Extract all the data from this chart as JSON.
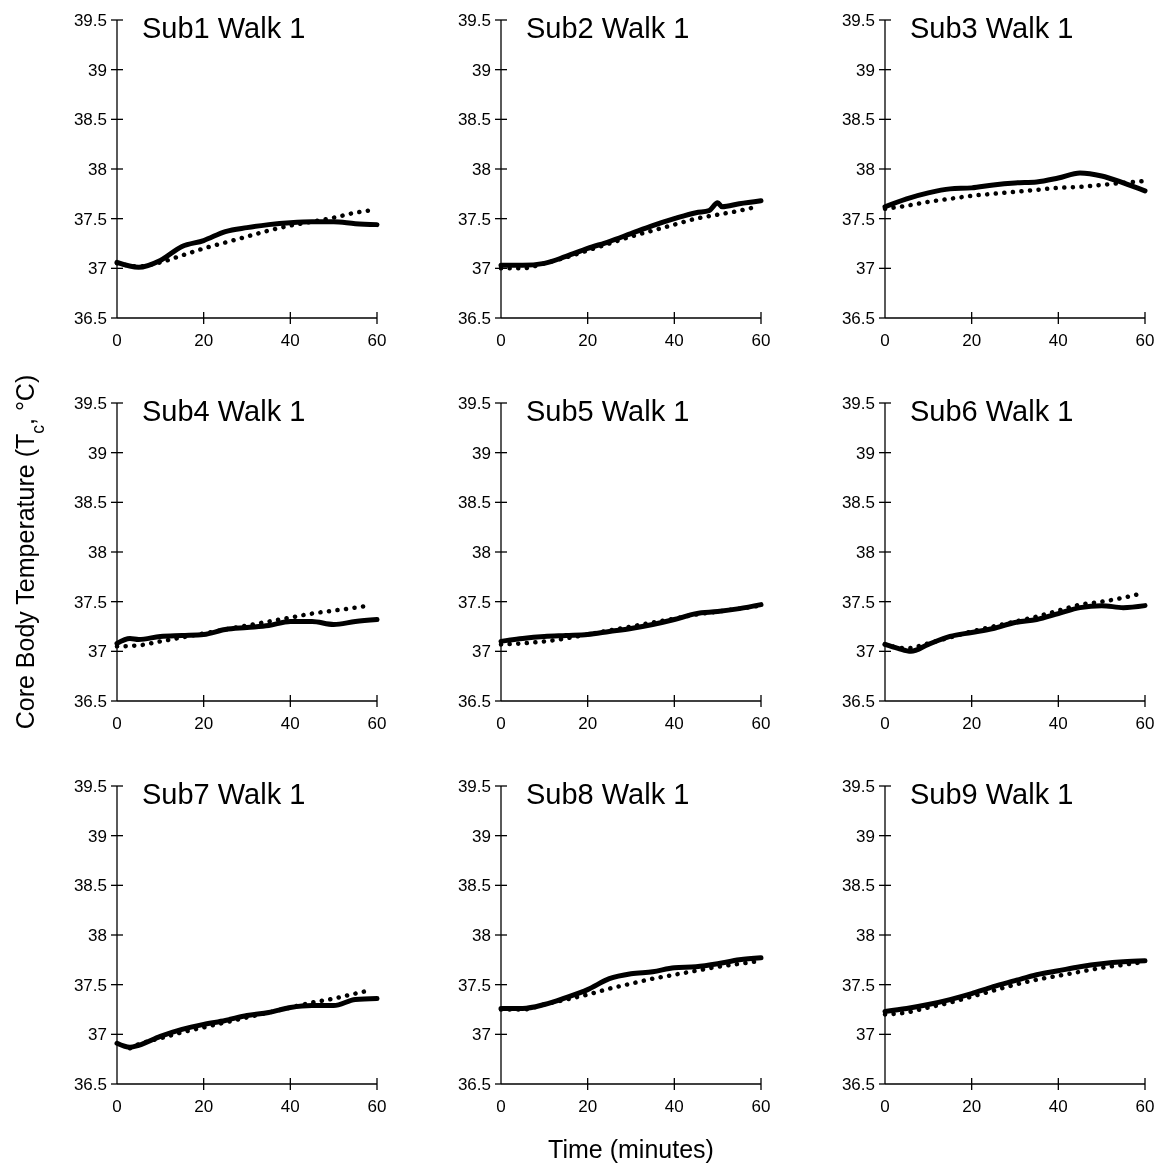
{
  "chart_data": [
    {
      "type": "line",
      "title": "Sub1 Walk 1",
      "xlim": [
        0,
        60
      ],
      "ylim": [
        36.5,
        39.5
      ],
      "xticks": [
        0,
        20,
        40,
        60
      ],
      "yticks": [
        36.5,
        37,
        37.5,
        38,
        38.5,
        39,
        39.5
      ],
      "grid": false,
      "series": [
        {
          "color": "#000000",
          "line_style": "solid",
          "x": [
            0,
            5,
            10,
            15,
            20,
            25,
            30,
            35,
            40,
            45,
            50,
            55,
            60
          ],
          "values": [
            37.06,
            37.01,
            37.08,
            37.22,
            37.28,
            37.37,
            37.41,
            37.44,
            37.46,
            37.47,
            37.47,
            37.45,
            37.44
          ]
        },
        {
          "color": "#000000",
          "line_style": "dotted",
          "x": [
            0,
            5,
            10,
            15,
            20,
            25,
            30,
            35,
            40,
            45,
            50,
            55,
            58
          ],
          "values": [
            37.05,
            37.02,
            37.06,
            37.13,
            37.2,
            37.26,
            37.32,
            37.38,
            37.43,
            37.47,
            37.51,
            37.56,
            37.58
          ]
        }
      ]
    },
    {
      "type": "line",
      "title": "Sub2 Walk 1",
      "xlim": [
        0,
        60
      ],
      "ylim": [
        36.5,
        39.5
      ],
      "xticks": [
        0,
        20,
        40,
        60
      ],
      "yticks": [
        36.5,
        37,
        37.5,
        38,
        38.5,
        39,
        39.5
      ],
      "grid": false,
      "series": [
        {
          "color": "#000000",
          "line_style": "solid",
          "x": [
            0,
            5,
            10,
            15,
            20,
            25,
            30,
            35,
            40,
            45,
            48,
            50,
            51,
            55,
            60
          ],
          "values": [
            37.03,
            37.03,
            37.05,
            37.12,
            37.2,
            37.27,
            37.35,
            37.43,
            37.5,
            37.56,
            37.58,
            37.66,
            37.62,
            37.65,
            37.68
          ]
        },
        {
          "color": "#000000",
          "line_style": "dotted",
          "x": [
            0,
            5,
            10,
            15,
            20,
            25,
            30,
            35,
            40,
            45,
            50,
            55,
            58
          ],
          "values": [
            37.0,
            37.0,
            37.05,
            37.11,
            37.18,
            37.25,
            37.32,
            37.38,
            37.44,
            37.5,
            37.54,
            37.58,
            37.61
          ]
        }
      ]
    },
    {
      "type": "line",
      "title": "Sub3 Walk 1",
      "xlim": [
        0,
        60
      ],
      "ylim": [
        36.5,
        39.5
      ],
      "xticks": [
        0,
        20,
        40,
        60
      ],
      "yticks": [
        36.5,
        37,
        37.5,
        38,
        38.5,
        39,
        39.5
      ],
      "grid": false,
      "series": [
        {
          "color": "#000000",
          "line_style": "solid",
          "x": [
            0,
            5,
            10,
            15,
            20,
            25,
            30,
            35,
            40,
            45,
            50,
            55,
            60
          ],
          "values": [
            37.62,
            37.7,
            37.76,
            37.8,
            37.81,
            37.84,
            37.86,
            37.87,
            37.91,
            37.96,
            37.93,
            37.86,
            37.78
          ]
        },
        {
          "color": "#000000",
          "line_style": "dotted",
          "x": [
            0,
            5,
            10,
            15,
            20,
            25,
            30,
            35,
            40,
            45,
            50,
            55,
            60
          ],
          "values": [
            37.6,
            37.63,
            37.67,
            37.7,
            37.73,
            37.75,
            37.77,
            37.79,
            37.81,
            37.82,
            37.84,
            37.86,
            37.88
          ]
        }
      ]
    },
    {
      "type": "line",
      "title": "Sub4 Walk 1",
      "ylabel": "Core Body Temperature (T$_{c}$, °C)",
      "xlim": [
        0,
        60
      ],
      "ylim": [
        36.5,
        39.5
      ],
      "xticks": [
        0,
        20,
        40,
        60
      ],
      "yticks": [
        36.5,
        37,
        37.5,
        38,
        38.5,
        39,
        39.5
      ],
      "grid": false,
      "series": [
        {
          "color": "#000000",
          "line_style": "solid",
          "x": [
            0,
            3,
            5,
            10,
            15,
            20,
            25,
            30,
            35,
            40,
            45,
            50,
            55,
            60
          ],
          "values": [
            37.08,
            37.13,
            37.12,
            37.15,
            37.16,
            37.17,
            37.22,
            37.24,
            37.26,
            37.3,
            37.3,
            37.27,
            37.3,
            37.32
          ]
        },
        {
          "color": "#000000",
          "line_style": "dotted",
          "x": [
            0,
            5,
            10,
            15,
            20,
            25,
            30,
            35,
            40,
            45,
            50,
            55,
            58
          ],
          "values": [
            37.05,
            37.06,
            37.1,
            37.14,
            37.18,
            37.22,
            37.26,
            37.3,
            37.34,
            37.38,
            37.41,
            37.44,
            37.46
          ]
        }
      ]
    },
    {
      "type": "line",
      "title": "Sub5 Walk 1",
      "xlim": [
        0,
        60
      ],
      "ylim": [
        36.5,
        39.5
      ],
      "xticks": [
        0,
        20,
        40,
        60
      ],
      "yticks": [
        36.5,
        37,
        37.5,
        38,
        38.5,
        39,
        39.5
      ],
      "grid": false,
      "series": [
        {
          "color": "#000000",
          "line_style": "solid",
          "x": [
            0,
            5,
            10,
            15,
            20,
            25,
            30,
            35,
            40,
            45,
            50,
            55,
            60
          ],
          "values": [
            37.1,
            37.13,
            37.15,
            37.16,
            37.17,
            37.2,
            37.23,
            37.27,
            37.32,
            37.38,
            37.4,
            37.43,
            37.47
          ]
        },
        {
          "color": "#000000",
          "line_style": "dotted",
          "x": [
            0,
            5,
            10,
            15,
            20,
            25,
            30,
            35,
            40,
            45,
            50,
            55,
            60
          ],
          "values": [
            37.07,
            37.08,
            37.1,
            37.13,
            37.17,
            37.21,
            37.25,
            37.29,
            37.33,
            37.37,
            37.4,
            37.43,
            37.46
          ]
        }
      ]
    },
    {
      "type": "line",
      "title": "Sub6 Walk 1",
      "xlim": [
        0,
        60
      ],
      "ylim": [
        36.5,
        39.5
      ],
      "xticks": [
        0,
        20,
        40,
        60
      ],
      "yticks": [
        36.5,
        37,
        37.5,
        38,
        38.5,
        39,
        39.5
      ],
      "grid": false,
      "series": [
        {
          "color": "#000000",
          "line_style": "solid",
          "x": [
            0,
            3,
            6,
            10,
            15,
            20,
            25,
            30,
            35,
            40,
            45,
            50,
            55,
            60
          ],
          "values": [
            37.07,
            37.03,
            37.0,
            37.07,
            37.15,
            37.19,
            37.23,
            37.29,
            37.32,
            37.38,
            37.44,
            37.46,
            37.44,
            37.46
          ]
        },
        {
          "color": "#000000",
          "line_style": "dotted",
          "x": [
            0,
            5,
            10,
            15,
            20,
            25,
            30,
            35,
            40,
            45,
            50,
            55,
            58
          ],
          "values": [
            37.07,
            37.03,
            37.08,
            37.14,
            37.2,
            37.25,
            37.3,
            37.35,
            37.41,
            37.47,
            37.5,
            37.54,
            37.57
          ]
        }
      ]
    },
    {
      "type": "line",
      "title": "Sub7 Walk 1",
      "xlim": [
        0,
        60
      ],
      "ylim": [
        36.5,
        39.5
      ],
      "xticks": [
        0,
        20,
        40,
        60
      ],
      "yticks": [
        36.5,
        37,
        37.5,
        38,
        38.5,
        39,
        39.5
      ],
      "grid": false,
      "series": [
        {
          "color": "#000000",
          "line_style": "solid",
          "x": [
            0,
            3,
            5,
            10,
            15,
            20,
            25,
            30,
            35,
            40,
            45,
            50,
            55,
            60
          ],
          "values": [
            36.91,
            36.87,
            36.89,
            36.98,
            37.05,
            37.1,
            37.14,
            37.19,
            37.22,
            37.27,
            37.29,
            37.29,
            37.35,
            37.36
          ]
        },
        {
          "color": "#000000",
          "line_style": "dotted",
          "x": [
            3,
            5,
            10,
            15,
            20,
            25,
            30,
            35,
            40,
            45,
            50,
            55,
            58
          ],
          "values": [
            36.86,
            36.9,
            36.96,
            37.02,
            37.07,
            37.12,
            37.17,
            37.22,
            37.27,
            37.32,
            37.36,
            37.41,
            37.44
          ]
        }
      ]
    },
    {
      "type": "line",
      "title": "Sub8 Walk 1",
      "xlabel": "Time (minutes)",
      "xlim": [
        0,
        60
      ],
      "ylim": [
        36.5,
        39.5
      ],
      "xticks": [
        0,
        20,
        40,
        60
      ],
      "yticks": [
        36.5,
        37,
        37.5,
        38,
        38.5,
        39,
        39.5
      ],
      "grid": false,
      "series": [
        {
          "color": "#000000",
          "line_style": "solid",
          "x": [
            0,
            5,
            10,
            15,
            20,
            25,
            30,
            35,
            40,
            45,
            50,
            55,
            60
          ],
          "values": [
            37.26,
            37.26,
            37.3,
            37.37,
            37.45,
            37.56,
            37.61,
            37.63,
            37.67,
            37.68,
            37.71,
            37.75,
            37.77
          ]
        },
        {
          "color": "#000000",
          "line_style": "dotted",
          "x": [
            0,
            5,
            10,
            15,
            20,
            25,
            30,
            35,
            40,
            45,
            50,
            55,
            60
          ],
          "values": [
            37.25,
            37.25,
            37.3,
            37.35,
            37.4,
            37.46,
            37.51,
            37.56,
            37.6,
            37.64,
            37.68,
            37.71,
            37.74
          ]
        }
      ]
    },
    {
      "type": "line",
      "title": "Sub9 Walk 1",
      "xlim": [
        0,
        60
      ],
      "ylim": [
        36.5,
        39.5
      ],
      "xticks": [
        0,
        20,
        40,
        60
      ],
      "yticks": [
        36.5,
        37,
        37.5,
        38,
        38.5,
        39,
        39.5
      ],
      "grid": false,
      "series": [
        {
          "color": "#000000",
          "line_style": "solid",
          "x": [
            0,
            5,
            10,
            15,
            20,
            25,
            30,
            35,
            40,
            45,
            50,
            55,
            60
          ],
          "values": [
            37.23,
            37.26,
            37.3,
            37.35,
            37.41,
            37.48,
            37.54,
            37.6,
            37.64,
            37.68,
            37.71,
            37.73,
            37.74
          ]
        },
        {
          "color": "#000000",
          "line_style": "dotted",
          "x": [
            0,
            5,
            10,
            15,
            20,
            25,
            30,
            35,
            40,
            45,
            50,
            55,
            60
          ],
          "values": [
            37.2,
            37.22,
            37.27,
            37.32,
            37.38,
            37.44,
            37.5,
            37.55,
            37.59,
            37.63,
            37.67,
            37.7,
            37.73
          ]
        }
      ]
    }
  ]
}
